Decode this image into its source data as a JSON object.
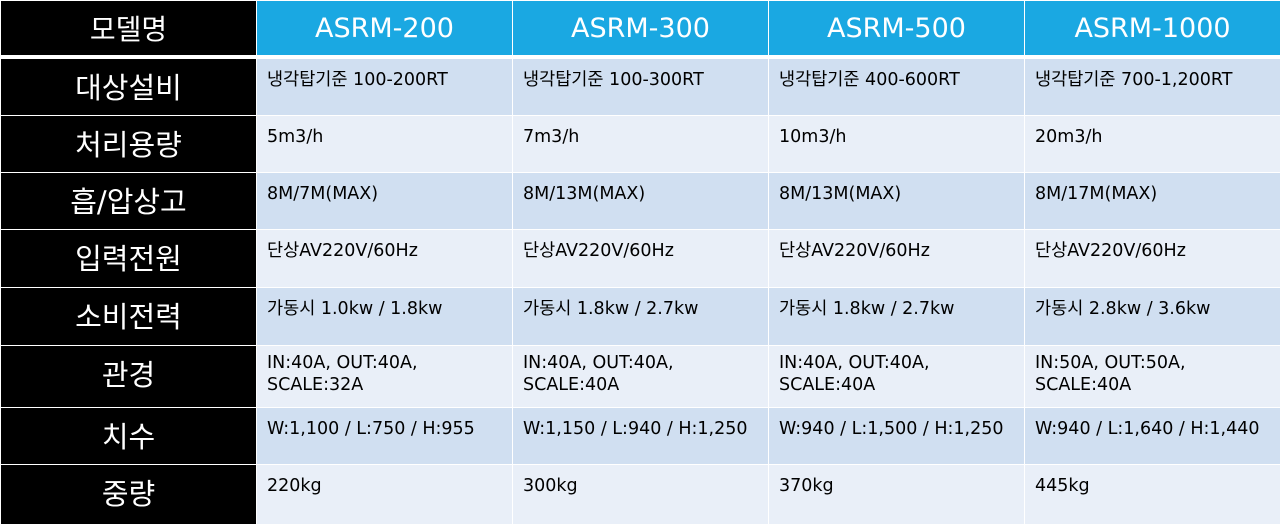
{
  "table": {
    "corner_label": "모델명",
    "models": [
      "ASRM-200",
      "ASRM-300",
      "ASRM-500",
      "ASRM-1000"
    ],
    "rows": [
      {
        "label": "대상설비",
        "values": [
          "냉각탑기준 100-200RT",
          "냉각탑기준 100-300RT",
          "냉각탑기준 400-600RT",
          "냉각탑기준 700-1,200RT"
        ]
      },
      {
        "label": "처리용량",
        "values": [
          "5m3/h",
          "7m3/h",
          "10m3/h",
          "20m3/h"
        ]
      },
      {
        "label": "흡/압상고",
        "values": [
          "8M/7M(MAX)",
          "8M/13M(MAX)",
          "8M/13M(MAX)",
          "8M/17M(MAX)"
        ]
      },
      {
        "label": "입력전원",
        "values": [
          "단상AV220V/60Hz",
          "단상AV220V/60Hz",
          "단상AV220V/60Hz",
          "단상AV220V/60Hz"
        ]
      },
      {
        "label": "소비전력",
        "values": [
          "가동시 1.0kw / 1.8kw",
          "가동시 1.8kw / 2.7kw",
          "가동시 1.8kw / 2.7kw",
          "가동시 2.8kw / 3.6kw"
        ]
      },
      {
        "label": "관경",
        "values": [
          "IN:40A, OUT:40A, SCALE:32A",
          "IN:40A, OUT:40A, SCALE:40A",
          "IN:40A, OUT:40A, SCALE:40A",
          "IN:50A, OUT:50A, SCALE:40A"
        ]
      },
      {
        "label": "치수",
        "values": [
          "W:1,100 / L:750 / H:955",
          "W:1,150 / L:940 / H:1,250",
          "W:940 / L:1,500 / H:1,250",
          "W:940 / L:1,640 / H:1,440"
        ]
      },
      {
        "label": "중량",
        "values": [
          "220kg",
          "300kg",
          "370kg",
          "445kg"
        ]
      }
    ]
  },
  "colors": {
    "header_blue": "#1aa8e2",
    "label_black": "#000000",
    "row_dark": "#d0dff1",
    "row_light": "#e9eff8"
  }
}
